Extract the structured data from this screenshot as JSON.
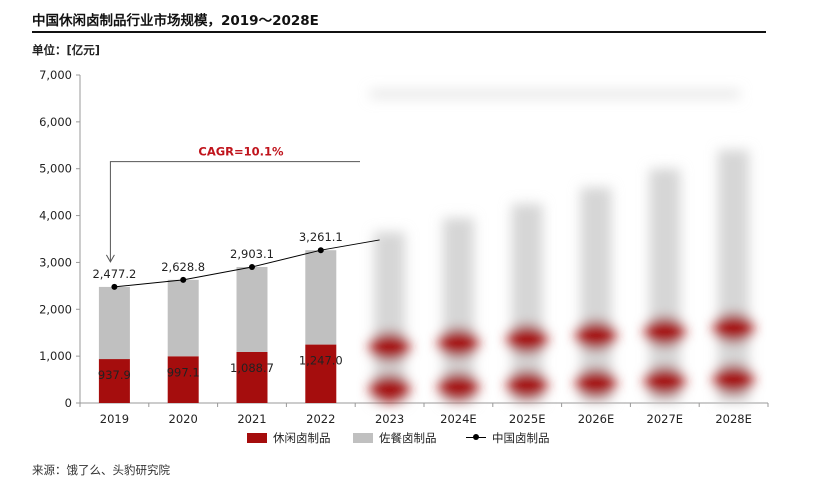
{
  "title": "中国休闲卤制品行业市场规模，2019～2028E",
  "unit": "单位：[亿元]",
  "source": "来源：饿了么、头豹研究院",
  "legend": {
    "casual": "休闲卤制品",
    "meal": "佐餐卤制品",
    "total": "中国卤制品"
  },
  "colors": {
    "casual": "#a50d0d",
    "meal": "#c0c0c0",
    "line": "#000000",
    "cagr": "#c0141c"
  },
  "chart_data": {
    "type": "bar",
    "categories": [
      "2019",
      "2020",
      "2021",
      "2022",
      "2023",
      "2024E",
      "2025E",
      "2026E",
      "2027E",
      "2028E"
    ],
    "series": [
      {
        "name": "休闲卤制品",
        "values": [
          937.9,
          997.1,
          1088.7,
          1247.0,
          null,
          null,
          null,
          null,
          null,
          null
        ]
      },
      {
        "name": "佐餐卤制品",
        "values": [
          1539.3,
          1631.7,
          1814.4,
          2014.1,
          null,
          null,
          null,
          null,
          null,
          null
        ]
      },
      {
        "name": "中国卤制品",
        "values": [
          2477.2,
          2628.8,
          2903.1,
          3261.1,
          null,
          null,
          null,
          null,
          null,
          null
        ]
      }
    ],
    "value_labels": {
      "casual": [
        "937.9",
        "997.1",
        "1,088.7",
        "1,247.0"
      ],
      "total": [
        "2,477.2",
        "2,628.8",
        "2,903.1",
        "3,261.1"
      ]
    },
    "ylim": [
      0,
      7000
    ],
    "yticks": [
      "0",
      "1,000",
      "2,000",
      "3,000",
      "4,000",
      "5,000",
      "6,000",
      "7,000"
    ],
    "annotation": "CAGR=10.1%",
    "stacked": true
  }
}
